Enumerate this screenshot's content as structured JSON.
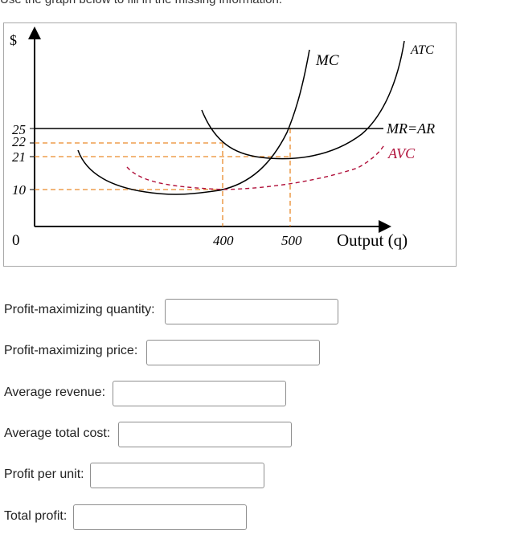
{
  "instruction": "Use the graph below to fill in the missing information.",
  "graph": {
    "y_axis_symbol": "$",
    "x_axis_label": "Output (q)",
    "y_ticks": [
      "25",
      "22",
      "21",
      "10",
      "0"
    ],
    "x_ticks": [
      "400",
      "500"
    ],
    "curves": {
      "mc": "MC",
      "atc": "ATC",
      "mr_ar": "MR=AR",
      "avc": "AVC"
    },
    "colors": {
      "axis": "#000000",
      "guide_lines": "#e98a2b",
      "avc_curve": "#b0103a",
      "curves": "#000000"
    }
  },
  "questions": [
    {
      "label": "Profit-maximizing quantity:",
      "value": ""
    },
    {
      "label": "Profit-maximizing price:",
      "value": ""
    },
    {
      "label": "Average revenue:",
      "value": ""
    },
    {
      "label": "Average total cost:",
      "value": ""
    },
    {
      "label": "Profit per unit:",
      "value": ""
    },
    {
      "label": "Total profit:",
      "value": ""
    }
  ]
}
